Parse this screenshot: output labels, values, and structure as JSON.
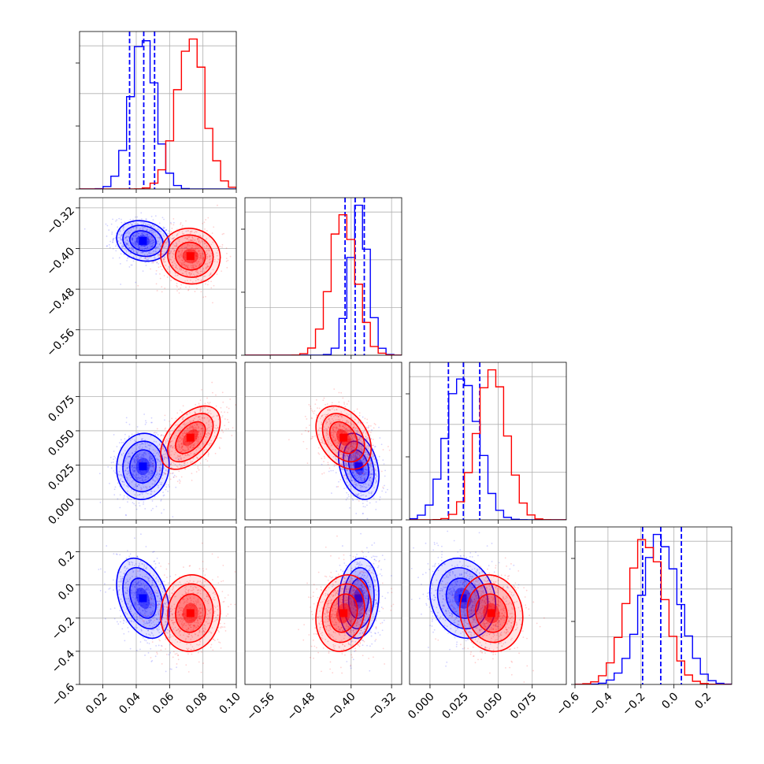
{
  "chart_data": {
    "type": "corner",
    "n_params": 4,
    "series": [
      {
        "name": "",
        "color": "#0000ff",
        "means": [
          0.044,
          -0.385,
          0.024,
          -0.08
        ],
        "sigmas": [
          0.0075,
          0.019,
          0.0115,
          0.115
        ],
        "quantile_lines": [
          [
            0.036,
            0.0445,
            0.051
          ],
          [
            -0.412,
            -0.392,
            -0.374
          ],
          [
            0.0135,
            0.0245,
            0.0365
          ],
          [
            -0.19,
            -0.08,
            0.045
          ]
        ]
      },
      {
        "name": "",
        "color": "#ff0000",
        "means": [
          0.0725,
          -0.415,
          0.045,
          -0.17
        ],
        "sigmas": [
          0.0085,
          0.026,
          0.011,
          0.11
        ],
        "quantile_lines": []
      }
    ],
    "correlations": {
      "blue": {
        "1_0": -0.15,
        "2_0": 0.05,
        "2_1": -0.3,
        "3_0": -0.35,
        "3_1": 0.1,
        "3_2": -0.15
      },
      "red": {
        "1_0": -0.05,
        "2_0": 0.5,
        "2_1": -0.35,
        "3_0": 0.05,
        "3_1": 0.15,
        "3_2": -0.1
      }
    },
    "ranges": [
      [
        0.006,
        0.1
      ],
      [
        -0.61,
        -0.3
      ],
      [
        -0.015,
        0.1
      ],
      [
        -0.6,
        0.35
      ]
    ],
    "tick_labels": [
      [
        "0.02",
        "0.04",
        "0.06",
        "0.08",
        "0.10"
      ],
      [
        "−0.56",
        "−0.48",
        "−0.40",
        "−0.32"
      ],
      [
        "0.000",
        "0.025",
        "0.050",
        "0.075"
      ],
      [
        "−0.6",
        "−0.4",
        "−0.2",
        "0.0",
        "0.2"
      ]
    ],
    "tick_values": [
      [
        0.02,
        0.04,
        0.06,
        0.08,
        0.1
      ],
      [
        -0.56,
        -0.48,
        -0.4,
        -0.32
      ],
      [
        0.0,
        0.025,
        0.05,
        0.075
      ],
      [
        -0.6,
        -0.4,
        -0.2,
        0.0,
        0.2
      ]
    ],
    "grid": true,
    "legend": "none"
  }
}
